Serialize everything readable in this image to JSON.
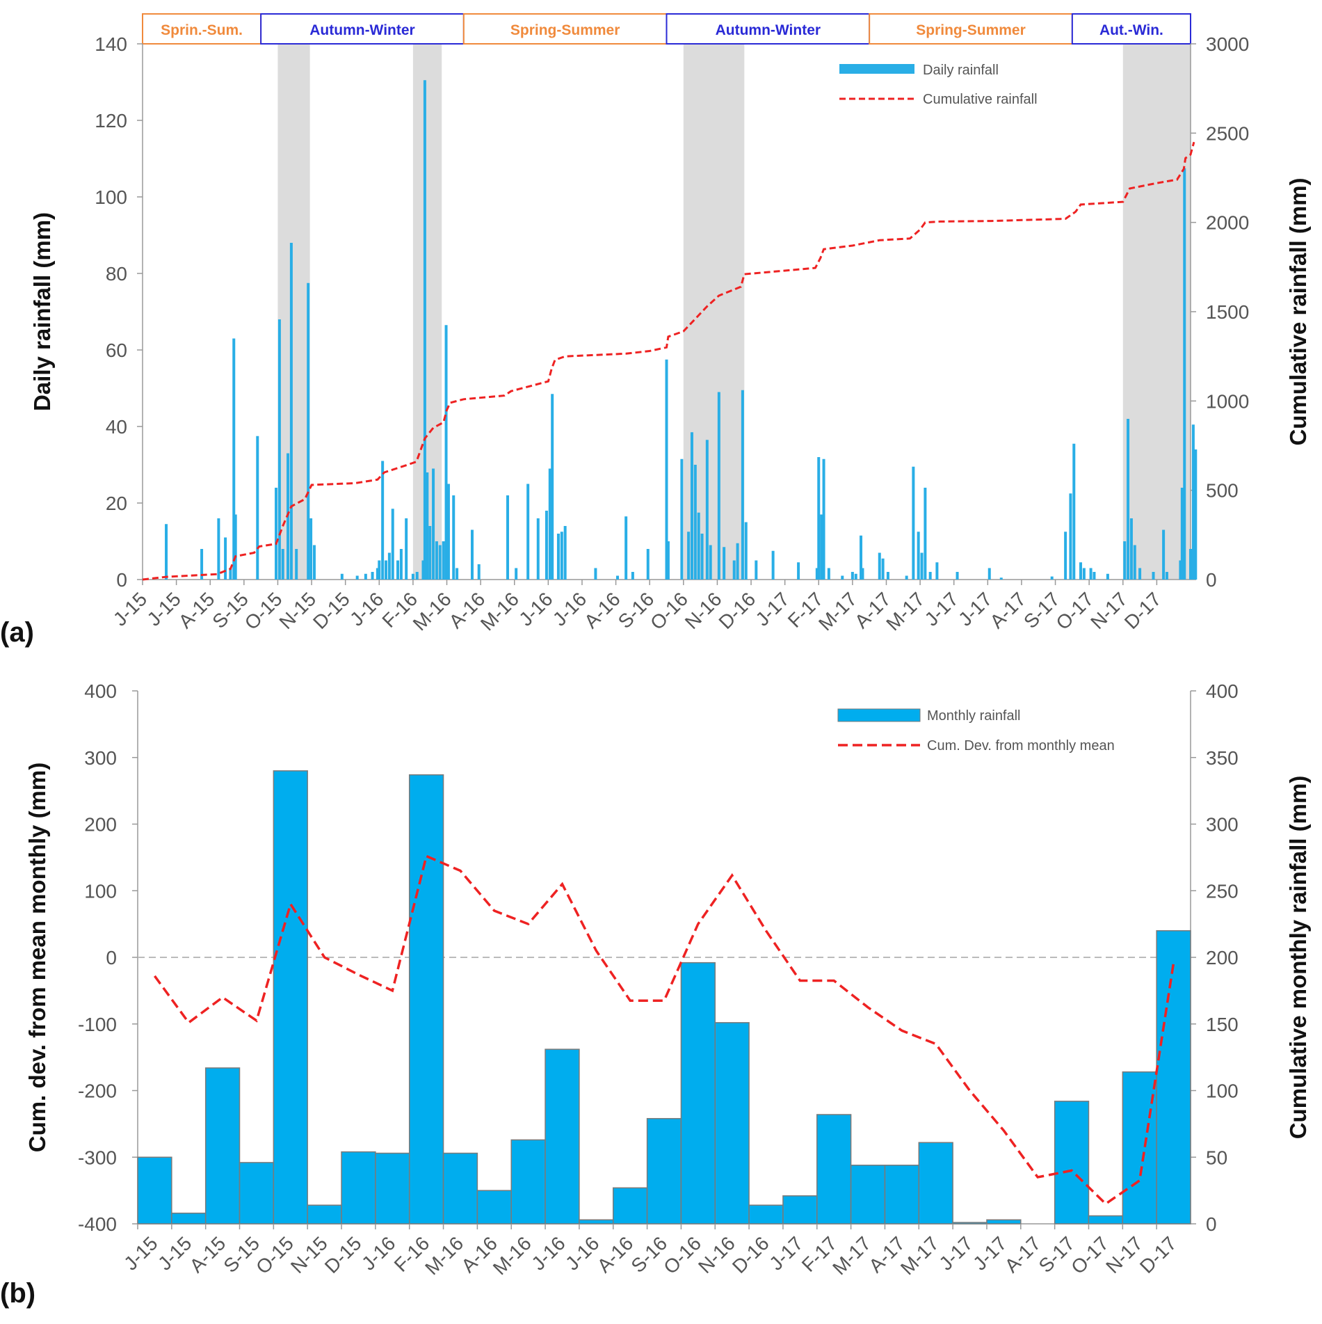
{
  "chart_data": [
    {
      "type": "bar",
      "panel_label": "(a)",
      "title": "",
      "xlabel": "",
      "ylabel": "Daily rainfall (mm)",
      "y2label": "Cumulative rainfall (mm)",
      "ylim": [
        0,
        140
      ],
      "y2lim": [
        0,
        3000
      ],
      "yticks": [
        0,
        20,
        40,
        60,
        80,
        100,
        120,
        140
      ],
      "y2ticks": [
        0,
        500,
        1000,
        1500,
        2000,
        2500,
        3000
      ],
      "xlim_months": [
        0,
        31
      ],
      "months": [
        "J-15",
        "J-15",
        "A-15",
        "S-15",
        "O-15",
        "N-15",
        "D-15",
        "J-16",
        "F-16",
        "M-16",
        "A-16",
        "M-16",
        "J-16",
        "J-16",
        "A-16",
        "S-16",
        "O-16",
        "N-16",
        "D-16",
        "J-17",
        "F-17",
        "M-17",
        "A-17",
        "M-17",
        "J-17",
        "J-17",
        "A-17",
        "S-17",
        "O-17",
        "N-17",
        "D-17"
      ],
      "legend": [
        {
          "label": "Daily rainfall",
          "color": "#29aee6",
          "kind": "bar"
        },
        {
          "label": "Cumulative rainfall",
          "color": "#ee2222",
          "kind": "dashed-line"
        }
      ],
      "seasons": [
        {
          "label": "Sprin.-Sum.",
          "start": 0,
          "end": 3.5,
          "kind": "spring"
        },
        {
          "label": "Autumn-Winter",
          "start": 3.5,
          "end": 9.5,
          "kind": "autumn"
        },
        {
          "label": "Spring-Summer",
          "start": 9.5,
          "end": 15.5,
          "kind": "spring"
        },
        {
          "label": "Autumn-Winter",
          "start": 15.5,
          "end": 21.5,
          "kind": "autumn"
        },
        {
          "label": "Spring-Summer",
          "start": 21.5,
          "end": 27.5,
          "kind": "spring"
        },
        {
          "label": "Aut.-Win.",
          "start": 27.5,
          "end": 31,
          "kind": "autumn"
        }
      ],
      "shaded_periods": [
        [
          4.0,
          4.95
        ],
        [
          8.0,
          8.85
        ],
        [
          16.0,
          17.8
        ],
        [
          29.0,
          31.0
        ]
      ],
      "daily_rainfall": [
        {
          "t": 0.7,
          "v": 14.5
        },
        {
          "t": 1.75,
          "v": 8
        },
        {
          "t": 2.25,
          "v": 16
        },
        {
          "t": 2.45,
          "v": 11
        },
        {
          "t": 2.6,
          "v": 3
        },
        {
          "t": 2.7,
          "v": 63
        },
        {
          "t": 2.75,
          "v": 17
        },
        {
          "t": 3.4,
          "v": 37.5
        },
        {
          "t": 3.95,
          "v": 24
        },
        {
          "t": 4.05,
          "v": 68
        },
        {
          "t": 4.15,
          "v": 8
        },
        {
          "t": 4.3,
          "v": 33
        },
        {
          "t": 4.4,
          "v": 88
        },
        {
          "t": 4.55,
          "v": 8
        },
        {
          "t": 4.9,
          "v": 77.5
        },
        {
          "t": 4.98,
          "v": 16
        },
        {
          "t": 5.08,
          "v": 9
        },
        {
          "t": 5.9,
          "v": 1.5
        },
        {
          "t": 6.35,
          "v": 1
        },
        {
          "t": 6.6,
          "v": 1.5
        },
        {
          "t": 6.8,
          "v": 2
        },
        {
          "t": 6.95,
          "v": 3
        },
        {
          "t": 7.0,
          "v": 5
        },
        {
          "t": 7.1,
          "v": 31
        },
        {
          "t": 7.2,
          "v": 5
        },
        {
          "t": 7.3,
          "v": 7
        },
        {
          "t": 7.4,
          "v": 18.5
        },
        {
          "t": 7.55,
          "v": 5
        },
        {
          "t": 7.65,
          "v": 8
        },
        {
          "t": 7.8,
          "v": 16
        },
        {
          "t": 8.0,
          "v": 1.5
        },
        {
          "t": 8.12,
          "v": 2
        },
        {
          "t": 8.3,
          "v": 5
        },
        {
          "t": 8.35,
          "v": 130.5
        },
        {
          "t": 8.42,
          "v": 28
        },
        {
          "t": 8.5,
          "v": 14
        },
        {
          "t": 8.6,
          "v": 29
        },
        {
          "t": 8.7,
          "v": 10
        },
        {
          "t": 8.8,
          "v": 9
        },
        {
          "t": 8.9,
          "v": 10
        },
        {
          "t": 8.98,
          "v": 66.5
        },
        {
          "t": 9.05,
          "v": 25
        },
        {
          "t": 9.2,
          "v": 22
        },
        {
          "t": 9.3,
          "v": 3
        },
        {
          "t": 9.75,
          "v": 13
        },
        {
          "t": 9.95,
          "v": 4
        },
        {
          "t": 10.8,
          "v": 22
        },
        {
          "t": 11.05,
          "v": 3
        },
        {
          "t": 11.4,
          "v": 25
        },
        {
          "t": 11.7,
          "v": 16
        },
        {
          "t": 11.95,
          "v": 18
        },
        {
          "t": 12.05,
          "v": 29
        },
        {
          "t": 12.12,
          "v": 48.5
        },
        {
          "t": 12.3,
          "v": 12
        },
        {
          "t": 12.4,
          "v": 12.5
        },
        {
          "t": 12.5,
          "v": 14
        },
        {
          "t": 13.4,
          "v": 3
        },
        {
          "t": 14.05,
          "v": 1
        },
        {
          "t": 14.3,
          "v": 16.5
        },
        {
          "t": 14.5,
          "v": 2
        },
        {
          "t": 14.95,
          "v": 8
        },
        {
          "t": 15.5,
          "v": 57.5
        },
        {
          "t": 15.55,
          "v": 10
        },
        {
          "t": 15.95,
          "v": 31.5
        },
        {
          "t": 16.15,
          "v": 12.5
        },
        {
          "t": 16.25,
          "v": 38.5
        },
        {
          "t": 16.35,
          "v": 30
        },
        {
          "t": 16.45,
          "v": 17.5
        },
        {
          "t": 16.55,
          "v": 12
        },
        {
          "t": 16.7,
          "v": 36.5
        },
        {
          "t": 16.8,
          "v": 9
        },
        {
          "t": 17.05,
          "v": 49
        },
        {
          "t": 17.2,
          "v": 8.5
        },
        {
          "t": 17.5,
          "v": 5
        },
        {
          "t": 17.6,
          "v": 9.5
        },
        {
          "t": 17.75,
          "v": 49.5
        },
        {
          "t": 17.85,
          "v": 15
        },
        {
          "t": 18.15,
          "v": 5
        },
        {
          "t": 18.65,
          "v": 7.5
        },
        {
          "t": 19.4,
          "v": 4.5
        },
        {
          "t": 19.95,
          "v": 3
        },
        {
          "t": 20.0,
          "v": 32
        },
        {
          "t": 20.08,
          "v": 17
        },
        {
          "t": 20.15,
          "v": 31.5
        },
        {
          "t": 20.3,
          "v": 3
        },
        {
          "t": 20.7,
          "v": 1
        },
        {
          "t": 21.0,
          "v": 2
        },
        {
          "t": 21.1,
          "v": 1.5
        },
        {
          "t": 21.25,
          "v": 11.5
        },
        {
          "t": 21.3,
          "v": 3
        },
        {
          "t": 21.8,
          "v": 7
        },
        {
          "t": 21.9,
          "v": 5.5
        },
        {
          "t": 22.05,
          "v": 2
        },
        {
          "t": 22.6,
          "v": 1
        },
        {
          "t": 22.8,
          "v": 29.5
        },
        {
          "t": 22.95,
          "v": 12.5
        },
        {
          "t": 23.05,
          "v": 7
        },
        {
          "t": 23.15,
          "v": 24
        },
        {
          "t": 23.3,
          "v": 2
        },
        {
          "t": 23.5,
          "v": 4.5
        },
        {
          "t": 24.1,
          "v": 2
        },
        {
          "t": 25.05,
          "v": 3
        },
        {
          "t": 25.4,
          "v": 0.5
        },
        {
          "t": 26.9,
          "v": 0.8
        },
        {
          "t": 27.3,
          "v": 12.5
        },
        {
          "t": 27.45,
          "v": 22.5
        },
        {
          "t": 27.55,
          "v": 35.5
        },
        {
          "t": 27.75,
          "v": 4.5
        },
        {
          "t": 27.85,
          "v": 3
        },
        {
          "t": 28.05,
          "v": 3
        },
        {
          "t": 28.15,
          "v": 2
        },
        {
          "t": 28.55,
          "v": 1.5
        },
        {
          "t": 29.05,
          "v": 10
        },
        {
          "t": 29.15,
          "v": 42
        },
        {
          "t": 29.25,
          "v": 16
        },
        {
          "t": 29.35,
          "v": 9
        },
        {
          "t": 29.5,
          "v": 3
        },
        {
          "t": 29.9,
          "v": 2
        },
        {
          "t": 30.2,
          "v": 13
        },
        {
          "t": 30.3,
          "v": 2
        },
        {
          "t": 30.7,
          "v": 5
        },
        {
          "t": 30.75,
          "v": 24
        },
        {
          "t": 30.82,
          "v": 107.5
        },
        {
          "t": 31.0,
          "v": 8
        },
        {
          "t": 31.08,
          "v": 40.5
        },
        {
          "t": 31.15,
          "v": 34
        }
      ],
      "cumulative_rainfall": [
        {
          "t": 0.0,
          "v": 0
        },
        {
          "t": 0.7,
          "v": 15
        },
        {
          "t": 2.2,
          "v": 30
        },
        {
          "t": 2.6,
          "v": 60
        },
        {
          "t": 2.75,
          "v": 130
        },
        {
          "t": 3.3,
          "v": 150
        },
        {
          "t": 3.45,
          "v": 185
        },
        {
          "t": 3.95,
          "v": 200
        },
        {
          "t": 4.15,
          "v": 300
        },
        {
          "t": 4.4,
          "v": 410
        },
        {
          "t": 4.8,
          "v": 450
        },
        {
          "t": 5.0,
          "v": 530
        },
        {
          "t": 6.3,
          "v": 540
        },
        {
          "t": 6.95,
          "v": 560
        },
        {
          "t": 7.15,
          "v": 600
        },
        {
          "t": 7.8,
          "v": 640
        },
        {
          "t": 8.1,
          "v": 660
        },
        {
          "t": 8.35,
          "v": 790
        },
        {
          "t": 8.6,
          "v": 850
        },
        {
          "t": 8.9,
          "v": 880
        },
        {
          "t": 9.0,
          "v": 950
        },
        {
          "t": 9.1,
          "v": 990
        },
        {
          "t": 9.5,
          "v": 1010
        },
        {
          "t": 10.7,
          "v": 1030
        },
        {
          "t": 10.9,
          "v": 1055
        },
        {
          "t": 11.4,
          "v": 1080
        },
        {
          "t": 12.0,
          "v": 1110
        },
        {
          "t": 12.1,
          "v": 1180
        },
        {
          "t": 12.2,
          "v": 1230
        },
        {
          "t": 12.5,
          "v": 1250
        },
        {
          "t": 14.3,
          "v": 1265
        },
        {
          "t": 15.0,
          "v": 1280
        },
        {
          "t": 15.5,
          "v": 1300
        },
        {
          "t": 15.55,
          "v": 1360
        },
        {
          "t": 16.0,
          "v": 1390
        },
        {
          "t": 16.3,
          "v": 1450
        },
        {
          "t": 16.7,
          "v": 1530
        },
        {
          "t": 17.05,
          "v": 1590
        },
        {
          "t": 17.7,
          "v": 1640
        },
        {
          "t": 17.8,
          "v": 1710
        },
        {
          "t": 19.0,
          "v": 1730
        },
        {
          "t": 19.9,
          "v": 1745
        },
        {
          "t": 20.05,
          "v": 1800
        },
        {
          "t": 20.15,
          "v": 1850
        },
        {
          "t": 21.0,
          "v": 1870
        },
        {
          "t": 21.8,
          "v": 1900
        },
        {
          "t": 22.7,
          "v": 1910
        },
        {
          "t": 23.0,
          "v": 1960
        },
        {
          "t": 23.15,
          "v": 2000
        },
        {
          "t": 23.6,
          "v": 2005
        },
        {
          "t": 25.1,
          "v": 2008
        },
        {
          "t": 27.3,
          "v": 2020
        },
        {
          "t": 27.6,
          "v": 2060
        },
        {
          "t": 27.75,
          "v": 2100
        },
        {
          "t": 29.0,
          "v": 2115
        },
        {
          "t": 29.2,
          "v": 2190
        },
        {
          "t": 30.0,
          "v": 2220
        },
        {
          "t": 30.6,
          "v": 2240
        },
        {
          "t": 30.8,
          "v": 2300
        },
        {
          "t": 30.85,
          "v": 2360
        },
        {
          "t": 31.0,
          "v": 2380
        },
        {
          "t": 31.1,
          "v": 2450
        }
      ]
    },
    {
      "type": "bar",
      "panel_label": "(b)",
      "title": "",
      "xlabel": "",
      "ylabel": "Cum. dev. from mean monthly (mm)",
      "y2label": "Cumulative monthly rainfall (mm)",
      "ylim": [
        -400,
        400
      ],
      "y2lim": [
        0,
        400
      ],
      "yticks": [
        -400,
        -300,
        -200,
        -100,
        0,
        100,
        200,
        300,
        400
      ],
      "y2ticks": [
        0,
        50,
        100,
        150,
        200,
        250,
        300,
        350,
        400
      ],
      "categories": [
        "J-15",
        "J-15",
        "A-15",
        "S-15",
        "O-15",
        "N-15",
        "D-15",
        "J-16",
        "F-16",
        "M-16",
        "A-16",
        "M-16",
        "J-16",
        "J-16",
        "A-16",
        "S-16",
        "O-16",
        "N-16",
        "D-16",
        "J-17",
        "F-17",
        "M-17",
        "A-17",
        "M-17",
        "J-17",
        "J-17",
        "A-17",
        "S-17",
        "O-17",
        "N-17",
        "D-17"
      ],
      "legend": [
        {
          "label": "Monthly rainfall",
          "color": "#00adee",
          "kind": "bar"
        },
        {
          "label": "Cum. Dev. from monthly mean",
          "color": "#ee2222",
          "kind": "dashed-line"
        }
      ],
      "series": [
        {
          "name": "Monthly rainfall",
          "axis": "right",
          "values": [
            50,
            8,
            117,
            46,
            340,
            14,
            54,
            53,
            337,
            53,
            25,
            63,
            131,
            3,
            27,
            79,
            196,
            151,
            14,
            21,
            82,
            44,
            44,
            61,
            1,
            3,
            0,
            92,
            6,
            114,
            220
          ]
        },
        {
          "name": "Cum. Dev. from monthly mean",
          "axis": "left",
          "values": [
            -28,
            -98,
            -60,
            -95,
            80,
            0,
            -26,
            -50,
            152,
            130,
            70,
            50,
            110,
            10,
            -65,
            -65,
            50,
            123,
            40,
            -35,
            -35,
            -75,
            -110,
            -130,
            -200,
            -260,
            -330,
            -320,
            -370,
            -335,
            -8
          ]
        }
      ]
    }
  ]
}
